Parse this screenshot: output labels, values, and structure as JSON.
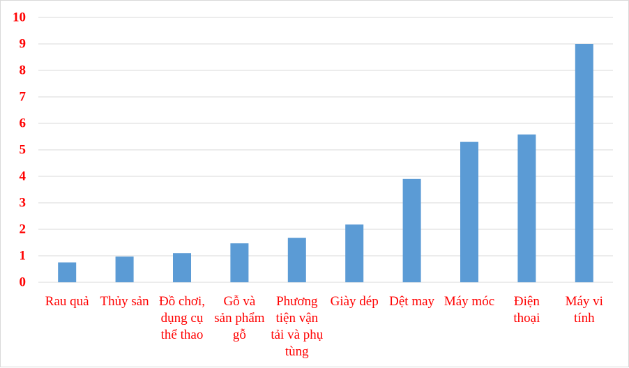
{
  "chart_data": {
    "type": "bar",
    "title": "",
    "xlabel": "",
    "ylabel": "",
    "ylim": [
      0,
      10
    ],
    "yticks": [
      0,
      1,
      2,
      3,
      4,
      5,
      6,
      7,
      8,
      9,
      10
    ],
    "grid": true,
    "legend": "none",
    "categories": [
      [
        "Rau quả"
      ],
      [
        "Thủy sản"
      ],
      [
        "Đồ chơi,",
        "dụng cụ",
        "thể thao"
      ],
      [
        "Gỗ và",
        "sản phẩm",
        "gỗ"
      ],
      [
        "Phương",
        "tiện vận",
        "tải và phụ",
        "tùng"
      ],
      [
        "Giày dép"
      ],
      [
        "Dệt may"
      ],
      [
        "Máy móc"
      ],
      [
        "Điện",
        "thoại"
      ],
      [
        "Máy vi",
        "tính"
      ]
    ],
    "values": [
      0.75,
      0.97,
      1.1,
      1.47,
      1.68,
      2.18,
      3.9,
      5.3,
      5.58,
      9.0
    ],
    "colors": {
      "bar": "#5b9bd5",
      "grid": "#d9d9d9",
      "tick_label": "#ff0000"
    }
  }
}
